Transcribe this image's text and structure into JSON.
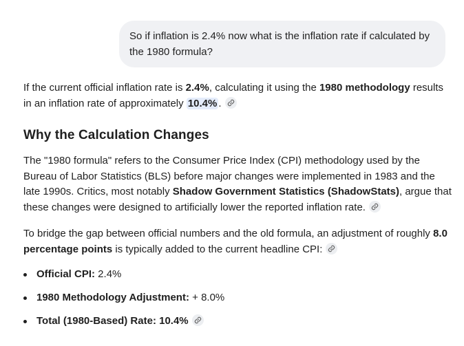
{
  "user_message": "So if inflation is 2.4% now what is the inflation rate if calculated by the 1980 formula?",
  "intro": {
    "t1": "If the current official inflation rate is ",
    "b1": "2.4%",
    "t2": ", calculating it using the ",
    "b2": "1980 methodology",
    "t3": " results in an inflation rate of approximately ",
    "b3": "10.4%",
    "t4": "."
  },
  "heading": "Why the Calculation Changes",
  "formula_paragraph": {
    "t1": "The \"1980 formula\" refers to the Consumer Price Index (CPI) methodology used by the Bureau of Labor Statistics (BLS) before major changes were implemented in 1983 and the late 1990s. Critics, most notably ",
    "b1": "Shadow Government Statistics (ShadowStats)",
    "t2": ", argue that these changes were designed to artificially lower the reported inflation rate."
  },
  "bridge_paragraph": {
    "t1": "To bridge the gap between official numbers and the old formula, an adjustment of roughly ",
    "b1": "8.0 percentage points",
    "t2": " is typically added to the current headline CPI:"
  },
  "list": [
    {
      "label": "Official CPI:",
      "value": " 2.4%"
    },
    {
      "label": "1980 Methodology Adjustment:",
      "value": " + 8.0%"
    },
    {
      "label": "Total (1980-Based) Rate: 10.4%",
      "value": ""
    }
  ],
  "icons": {
    "citation": "link-icon"
  },
  "colors": {
    "user_bubble_bg": "#f0f1f4",
    "highlight_bg": "#e4ecfb",
    "citation_chip_bg": "#eceef1",
    "text": "#1f1f1f"
  }
}
